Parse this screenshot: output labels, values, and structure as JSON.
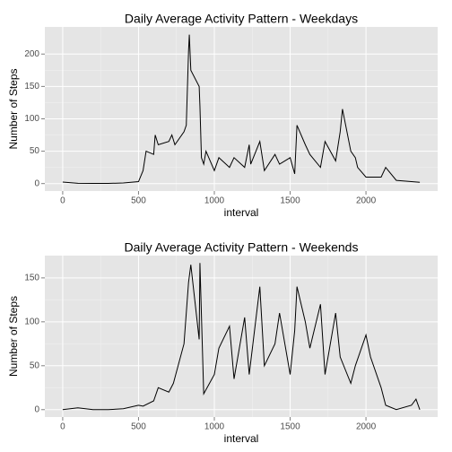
{
  "chart_data": [
    {
      "type": "line",
      "title": "Daily Average Activity Pattern - Weekdays",
      "x_label": "interval",
      "y_label": "Number of Steps",
      "color": "#000000",
      "grid": true,
      "x": [
        0,
        100,
        200,
        300,
        400,
        500,
        530,
        550,
        600,
        610,
        630,
        700,
        720,
        740,
        800,
        815,
        830,
        835,
        845,
        900,
        905,
        915,
        930,
        945,
        1000,
        1030,
        1100,
        1130,
        1200,
        1230,
        1240,
        1300,
        1330,
        1400,
        1430,
        1500,
        1530,
        1545,
        1600,
        1630,
        1700,
        1730,
        1800,
        1830,
        1845,
        1900,
        1930,
        1945,
        2000,
        2100,
        2130,
        2200,
        2300,
        2355
      ],
      "values": [
        2.3,
        0.5,
        0.3,
        0.2,
        1,
        3,
        20,
        50,
        45,
        75,
        60,
        65,
        75,
        60,
        80,
        90,
        205,
        230,
        175,
        150,
        120,
        40,
        30,
        50,
        20,
        40,
        25,
        40,
        25,
        60,
        30,
        65,
        20,
        45,
        30,
        40,
        15,
        90,
        60,
        45,
        25,
        65,
        35,
        80,
        115,
        50,
        40,
        25,
        10,
        10,
        25,
        5,
        3,
        2
      ],
      "xlim": [
        -117.75,
        2472.75
      ],
      "ylim": [
        -11.5,
        241.9
      ],
      "xticks": [
        0,
        500,
        1000,
        1500,
        2000
      ],
      "yticks": [
        0,
        50,
        100,
        150,
        200
      ]
    },
    {
      "type": "line",
      "title": "Daily Average Activity Pattern - Weekends",
      "x_label": "interval",
      "y_label": "Number of Steps",
      "color": "#000000",
      "grid": true,
      "x": [
        0,
        100,
        200,
        300,
        400,
        500,
        530,
        600,
        630,
        700,
        730,
        800,
        830,
        845,
        900,
        905,
        930,
        1000,
        1030,
        1100,
        1130,
        1200,
        1230,
        1300,
        1330,
        1400,
        1430,
        1500,
        1530,
        1545,
        1600,
        1630,
        1700,
        1730,
        1800,
        1830,
        1900,
        1930,
        2000,
        2030,
        2100,
        2130,
        2200,
        2300,
        2330,
        2355
      ],
      "values": [
        0,
        2,
        0,
        0,
        1,
        5,
        4,
        10,
        25,
        20,
        30,
        75,
        145,
        165,
        80,
        167,
        18,
        40,
        70,
        95,
        35,
        105,
        40,
        140,
        50,
        75,
        110,
        40,
        90,
        140,
        100,
        70,
        120,
        40,
        110,
        60,
        30,
        50,
        85,
        60,
        25,
        5,
        0,
        5,
        12,
        0
      ],
      "xlim": [
        -117.75,
        2472.75
      ],
      "ylim": [
        -8.4,
        175.4
      ],
      "xticks": [
        0,
        500,
        1000,
        1500,
        2000
      ],
      "yticks": [
        0,
        50,
        100,
        150
      ]
    }
  ]
}
